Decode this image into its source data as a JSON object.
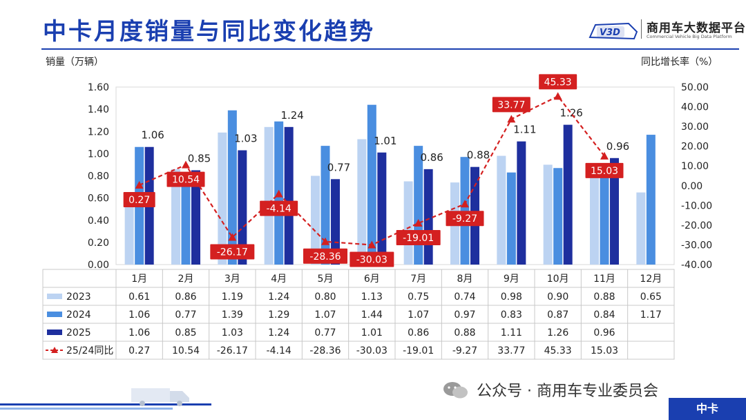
{
  "header": {
    "title": "中卡月度销量与同比变化趋势",
    "logo_name": "商用车大数据平台",
    "logo_sub": "Commercial Vehicle Big Data Platform",
    "logo_mark": "V3D"
  },
  "footer": {
    "account": "公众号 · 商用车专业委员会",
    "badge": "中卡"
  },
  "colors": {
    "s2023": "#bcd3f2",
    "s2024": "#4a8ee0",
    "s2025": "#1e2f9e",
    "yoy": "#d42020",
    "brand": "#1a3fb0"
  },
  "chart_data": {
    "type": "bar",
    "ylabel": "销量（万辆）",
    "y2label": "同比增长率（%）",
    "ylim": [
      0,
      1.6
    ],
    "y2lim": [
      -40,
      50
    ],
    "yticks": [
      "0.00",
      "0.20",
      "0.40",
      "0.60",
      "0.80",
      "1.00",
      "1.20",
      "1.40",
      "1.60"
    ],
    "y2ticks": [
      "-40.00",
      "-30.00",
      "-20.00",
      "-10.00",
      "0.00",
      "10.00",
      "20.00",
      "30.00",
      "40.00",
      "50.00"
    ],
    "categories": [
      "1月",
      "2月",
      "3月",
      "4月",
      "5月",
      "6月",
      "7月",
      "8月",
      "9月",
      "10月",
      "11月",
      "12月"
    ],
    "series": [
      {
        "name": "2023",
        "type": "bar",
        "values": [
          0.61,
          0.86,
          1.19,
          1.24,
          0.8,
          1.13,
          0.75,
          0.74,
          0.98,
          0.9,
          0.88,
          0.65
        ],
        "labels": [
          "0.61",
          "0.86",
          "1.19",
          "1.24",
          "0.80",
          "1.13",
          "0.75",
          "0.74",
          "0.98",
          "0.90",
          "0.88",
          "0.65"
        ]
      },
      {
        "name": "2024",
        "type": "bar",
        "values": [
          1.06,
          0.77,
          1.39,
          1.29,
          1.07,
          1.44,
          1.07,
          0.97,
          0.83,
          0.87,
          0.84,
          1.17
        ],
        "labels": [
          "1.06",
          "0.77",
          "1.39",
          "1.29",
          "1.07",
          "1.44",
          "1.07",
          "0.97",
          "0.83",
          "0.87",
          "0.84",
          "1.17"
        ]
      },
      {
        "name": "2025",
        "type": "bar",
        "values": [
          1.06,
          0.85,
          1.03,
          1.24,
          0.77,
          1.01,
          0.86,
          0.88,
          1.11,
          1.26,
          0.96,
          null
        ],
        "labels": [
          "1.06",
          "0.85",
          "1.03",
          "1.24",
          "0.77",
          "1.01",
          "0.86",
          "0.88",
          "1.11",
          "1.26",
          "0.96",
          ""
        ]
      },
      {
        "name": "25/24同比",
        "type": "line",
        "values": [
          0.27,
          10.54,
          -26.17,
          -4.14,
          -28.36,
          -30.03,
          -19.01,
          -9.27,
          33.77,
          45.33,
          15.03,
          null
        ],
        "labels": [
          "0.27",
          "10.54",
          "-26.17",
          "-4.14",
          "-28.36",
          "-30.03",
          "-19.01",
          "-9.27",
          "33.77",
          "45.33",
          "15.03",
          ""
        ]
      }
    ]
  }
}
